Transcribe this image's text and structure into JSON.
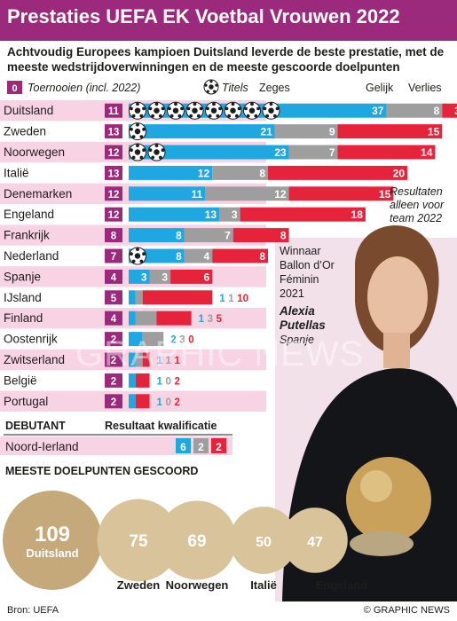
{
  "header": {
    "title": "Prestaties UEFA EK Voetbal Vrouwen 2022"
  },
  "subtitle": "Achtvoudig Europees kampioen Duitsland leverde de beste prestatie, met de meeste wedstrijdoverwinningen en de meeste gescoorde doelpunten",
  "colors": {
    "purple": "#9b2a7c",
    "blue": "#1ea7e1",
    "grey": "#9e9e9e",
    "red": "#e5243b",
    "pink_stripe": "#f6c4da",
    "gold": "#c5a97a",
    "gold_light": "#d8c39a",
    "dark": "#1d1d1b"
  },
  "legend": {
    "tournaments_badge": "0",
    "tournaments_label": "Toernooien (incl. 2022)",
    "titles_label": "Titels",
    "wins_label": "Zeges",
    "draws_label": "Gelijk",
    "losses_label": "Verlies",
    "ball_icon": "football-icon"
  },
  "chart_data": [
    {
      "type": "bar",
      "subtype": "stacked-horizontal",
      "categories": [
        "Duitsland",
        "Zweden",
        "Noorwegen",
        "Italië",
        "Denemarken",
        "Engeland",
        "Frankrijk",
        "Nederland",
        "Spanje",
        "IJsland",
        "Finland",
        "Oostenrijk",
        "Zwitserland",
        "België",
        "Portugal"
      ],
      "tournaments": [
        11,
        13,
        12,
        13,
        12,
        12,
        8,
        7,
        4,
        5,
        4,
        2,
        2,
        2,
        2
      ],
      "titles": [
        8,
        1,
        2,
        0,
        0,
        0,
        0,
        1,
        0,
        0,
        0,
        0,
        0,
        0,
        0
      ],
      "series": [
        {
          "name": "Zeges",
          "color": "#1ea7e1",
          "values": [
            37,
            21,
            23,
            12,
            11,
            13,
            8,
            8,
            3,
            1,
            1,
            2,
            1,
            1,
            1
          ]
        },
        {
          "name": "Gelijk",
          "color": "#9e9e9e",
          "values": [
            8,
            9,
            7,
            8,
            12,
            3,
            7,
            4,
            3,
            1,
            3,
            3,
            1,
            0,
            0
          ]
        },
        {
          "name": "Verlies",
          "color": "#e5243b",
          "values": [
            3,
            15,
            14,
            20,
            15,
            18,
            8,
            8,
            6,
            10,
            5,
            0,
            1,
            2,
            2
          ]
        }
      ],
      "label_outside": [
        false,
        false,
        false,
        false,
        false,
        false,
        false,
        false,
        false,
        true,
        true,
        true,
        true,
        true,
        true
      ]
    },
    {
      "type": "bar",
      "subtype": "bubbles",
      "title": "MEESTE DOELPUNTEN GESCOORD",
      "categories": [
        "Duitsland",
        "Zweden",
        "Noorwegen",
        "Italië",
        "Engeland"
      ],
      "values": [
        109,
        75,
        69,
        50,
        47
      ]
    }
  ],
  "note": "Resultaten alleen voor team 2022",
  "debutant": {
    "label": "DEBUTANT",
    "qual_label": "Resultaat kwalificatie",
    "team": "Noord-Ierland",
    "values": [
      6,
      2,
      2
    ]
  },
  "photo": {
    "caption_lines": [
      "Winnaar",
      "Ballon d’Or",
      "Féminin",
      "2021"
    ],
    "name_lines": [
      "Alexia",
      "Putellas"
    ],
    "country": "Spanje"
  },
  "watermark": "GRAPHIC NEWS",
  "footer": {
    "source": "Bron: UEFA",
    "credit": "© GRAPHIC NEWS"
  }
}
